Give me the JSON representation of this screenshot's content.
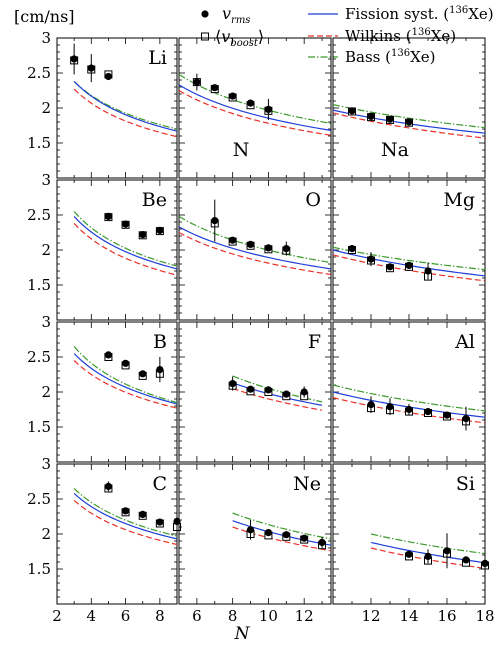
{
  "chart_data": {
    "type": "scatter",
    "unit_label": "[cm/ns]",
    "xlabel": "N",
    "y_ticks": [
      "1.5",
      "2",
      "2.5",
      "3"
    ],
    "x_ticks_col1": [
      "2",
      "4",
      "6",
      "8"
    ],
    "x_ticks_col2": [
      "6",
      "8",
      "10",
      "12"
    ],
    "x_ticks_col3": [
      "12",
      "14",
      "16",
      "18"
    ],
    "ylim": [
      1.0,
      3.0
    ],
    "xlim_col1": [
      2,
      9
    ],
    "xlim_col2": [
      5,
      13.5
    ],
    "xlim_col3": [
      10,
      18
    ],
    "legend": {
      "rms": {
        "sym": "v",
        "sub": "rms"
      },
      "boost": {
        "open": "⟨",
        "sym": "v",
        "sub": "boost",
        "close": "⟩"
      },
      "fission": {
        "text_before": "Fission syst. (",
        "sup": "136",
        "text_after": "Xe)",
        "color": "#1f3fd8"
      },
      "wilkins": {
        "text_before": "Wilkins (",
        "sup": "136",
        "text_after": "Xe)",
        "color": "#e8332b"
      },
      "bass": {
        "text_before": "Bass (",
        "sup": "136",
        "text_after": "Xe)",
        "color": "#3a9a2a"
      }
    },
    "panels": [
      {
        "element": "Li",
        "row": 0,
        "col": 0,
        "label_pos": "top-right",
        "rms": [
          [
            3,
            2.7,
            0.22
          ],
          [
            4,
            2.57,
            0.2
          ],
          [
            5,
            2.45,
            0.0
          ]
        ],
        "boost": [
          [
            3,
            2.68
          ],
          [
            4,
            2.55
          ],
          [
            5,
            2.48
          ]
        ],
        "fission": [
          [
            3,
            2.38
          ],
          [
            9,
            1.67
          ]
        ],
        "wilkins": [
          [
            3,
            2.27
          ],
          [
            9,
            1.59
          ]
        ],
        "bass": [
          [
            3,
            2.38
          ],
          [
            9,
            1.7
          ]
        ]
      },
      {
        "element": "N",
        "row": 0,
        "col": 1,
        "label_pos": "bottom-left",
        "rms": [
          [
            6,
            2.37,
            0.12
          ],
          [
            7,
            2.29,
            0.0
          ],
          [
            8,
            2.17,
            0.0
          ],
          [
            9,
            2.07,
            0.0
          ],
          [
            10,
            1.98,
            0.15
          ]
        ],
        "boost": [
          [
            6,
            2.37
          ],
          [
            7,
            2.27
          ],
          [
            8,
            2.15
          ],
          [
            9,
            2.04
          ],
          [
            10,
            1.96
          ]
        ],
        "fission": [
          [
            5,
            2.33
          ],
          [
            13.5,
            1.68
          ]
        ],
        "wilkins": [
          [
            5,
            2.25
          ],
          [
            13.5,
            1.61
          ]
        ],
        "bass": [
          [
            5,
            2.48
          ],
          [
            13.5,
            1.78
          ]
        ]
      },
      {
        "element": "Na",
        "row": 0,
        "col": 2,
        "label_pos": "bottom-left",
        "rms": [
          [
            11,
            1.96,
            0.0
          ],
          [
            12,
            1.88,
            0.0
          ],
          [
            13,
            1.84,
            0.0
          ],
          [
            14,
            1.8,
            0.0
          ]
        ],
        "boost": [
          [
            11,
            1.95
          ],
          [
            12,
            1.87
          ],
          [
            13,
            1.83
          ],
          [
            14,
            1.79
          ]
        ],
        "fission": [
          [
            10,
            1.97
          ],
          [
            18,
            1.64
          ]
        ],
        "wilkins": [
          [
            10,
            1.93
          ],
          [
            18,
            1.57
          ]
        ],
        "bass": [
          [
            10,
            2.05
          ],
          [
            18,
            1.72
          ]
        ]
      },
      {
        "element": "Be",
        "row": 1,
        "col": 0,
        "label_pos": "top-right",
        "rms": [
          [
            5,
            2.48,
            0.0
          ],
          [
            6,
            2.37,
            0.0
          ],
          [
            7,
            2.22,
            0.0
          ],
          [
            8,
            2.28,
            0.0
          ]
        ],
        "boost": [
          [
            5,
            2.47
          ],
          [
            6,
            2.36
          ],
          [
            7,
            2.21
          ],
          [
            8,
            2.27
          ]
        ],
        "fission": [
          [
            3,
            2.48
          ],
          [
            9,
            1.73
          ]
        ],
        "wilkins": [
          [
            3,
            2.38
          ],
          [
            9,
            1.64
          ]
        ],
        "bass": [
          [
            3,
            2.55
          ],
          [
            9,
            1.77
          ]
        ]
      },
      {
        "element": "O",
        "row": 1,
        "col": 1,
        "label_pos": "top-right",
        "rms": [
          [
            7,
            2.42,
            0.3
          ],
          [
            8,
            2.14,
            0.0
          ],
          [
            9,
            2.08,
            0.0
          ],
          [
            10,
            2.03,
            0.0
          ],
          [
            11,
            2.02,
            0.1
          ]
        ],
        "boost": [
          [
            7,
            2.38
          ],
          [
            8,
            2.12
          ],
          [
            9,
            2.06
          ],
          [
            10,
            2.01
          ],
          [
            11,
            1.99
          ]
        ],
        "fission": [
          [
            5,
            2.33
          ],
          [
            13.5,
            1.73
          ]
        ],
        "wilkins": [
          [
            5,
            2.25
          ],
          [
            13.5,
            1.65
          ]
        ],
        "bass": [
          [
            5,
            2.48
          ],
          [
            13.5,
            1.82
          ]
        ]
      },
      {
        "element": "Mg",
        "row": 1,
        "col": 2,
        "label_pos": "top-right",
        "rms": [
          [
            11,
            2.02,
            0.0
          ],
          [
            12,
            1.87,
            0.1
          ],
          [
            13,
            1.76,
            0.0
          ],
          [
            14,
            1.78,
            0.0
          ],
          [
            15,
            1.7,
            0.12
          ]
        ],
        "boost": [
          [
            11,
            2.0
          ],
          [
            12,
            1.85
          ],
          [
            13,
            1.74
          ],
          [
            14,
            1.76
          ],
          [
            15,
            1.62
          ]
        ],
        "fission": [
          [
            10,
            2.0
          ],
          [
            18,
            1.63
          ]
        ],
        "wilkins": [
          [
            10,
            1.93
          ],
          [
            18,
            1.56
          ]
        ],
        "bass": [
          [
            10,
            2.04
          ],
          [
            18,
            1.72
          ]
        ]
      },
      {
        "element": "B",
        "row": 2,
        "col": 0,
        "label_pos": "top-right",
        "rms": [
          [
            5,
            2.53,
            0.0
          ],
          [
            6,
            2.41,
            0.0
          ],
          [
            7,
            2.26,
            0.0
          ],
          [
            8,
            2.32,
            0.18
          ]
        ],
        "boost": [
          [
            5,
            2.5
          ],
          [
            6,
            2.38
          ],
          [
            7,
            2.23
          ],
          [
            8,
            2.26
          ]
        ],
        "fission": [
          [
            3,
            2.55
          ],
          [
            9,
            1.83
          ]
        ],
        "wilkins": [
          [
            3,
            2.45
          ],
          [
            9,
            1.77
          ]
        ],
        "bass": [
          [
            3,
            2.65
          ],
          [
            9,
            1.85
          ]
        ]
      },
      {
        "element": "F",
        "row": 2,
        "col": 1,
        "label_pos": "top-right",
        "rms": [
          [
            8,
            2.12,
            0.1
          ],
          [
            9,
            2.04,
            0.0
          ],
          [
            10,
            2.03,
            0.0
          ],
          [
            11,
            1.97,
            0.0
          ],
          [
            12,
            2.0,
            0.08
          ]
        ],
        "boost": [
          [
            8,
            2.09
          ],
          [
            9,
            2.01
          ],
          [
            10,
            2.0
          ],
          [
            11,
            1.94
          ],
          [
            12,
            1.94
          ]
        ],
        "fission": [
          [
            8,
            2.13
          ],
          [
            13,
            1.81
          ]
        ],
        "wilkins": [
          [
            8,
            2.05
          ],
          [
            13,
            1.74
          ]
        ],
        "bass": [
          [
            8,
            2.23
          ],
          [
            13,
            1.86
          ]
        ]
      },
      {
        "element": "Al",
        "row": 2,
        "col": 2,
        "label_pos": "top-right",
        "rms": [
          [
            12,
            1.82,
            0.12
          ],
          [
            13,
            1.79,
            0.12
          ],
          [
            14,
            1.75,
            0.08
          ],
          [
            15,
            1.72,
            0.0
          ],
          [
            16,
            1.67,
            0.0
          ],
          [
            17,
            1.62,
            0.17
          ]
        ],
        "boost": [
          [
            12,
            1.77
          ],
          [
            13,
            1.74
          ],
          [
            14,
            1.72
          ],
          [
            15,
            1.7
          ],
          [
            16,
            1.65
          ],
          [
            17,
            1.58
          ]
        ],
        "fission": [
          [
            10,
            2.0
          ],
          [
            18,
            1.64
          ]
        ],
        "wilkins": [
          [
            10,
            1.92
          ],
          [
            18,
            1.56
          ]
        ],
        "bass": [
          [
            10,
            2.1
          ],
          [
            18,
            1.73
          ]
        ]
      },
      {
        "element": "C",
        "row": 3,
        "col": 0,
        "label_pos": "top-right",
        "rms": [
          [
            5,
            2.68,
            0.07
          ],
          [
            6,
            2.33,
            0.0
          ],
          [
            7,
            2.28,
            0.0
          ],
          [
            8,
            2.17,
            0.0
          ],
          [
            9,
            2.18,
            0.15
          ]
        ],
        "boost": [
          [
            5,
            2.65
          ],
          [
            6,
            2.31
          ],
          [
            7,
            2.26
          ],
          [
            8,
            2.15
          ],
          [
            9,
            2.1
          ]
        ],
        "fission": [
          [
            3,
            2.58
          ],
          [
            9,
            1.93
          ]
        ],
        "wilkins": [
          [
            3,
            2.48
          ],
          [
            9,
            1.85
          ]
        ],
        "bass": [
          [
            3,
            2.65
          ],
          [
            9,
            1.97
          ]
        ]
      },
      {
        "element": "Ne",
        "row": 3,
        "col": 1,
        "label_pos": "top-right",
        "rms": [
          [
            9,
            2.06,
            0.14
          ],
          [
            10,
            2.02,
            0.0
          ],
          [
            11,
            1.99,
            0.0
          ],
          [
            12,
            1.94,
            0.0
          ],
          [
            13,
            1.88,
            0.08
          ]
        ],
        "boost": [
          [
            9,
            2.0
          ],
          [
            10,
            1.98
          ],
          [
            11,
            1.96
          ],
          [
            12,
            1.92
          ],
          [
            13,
            1.84
          ]
        ],
        "fission": [
          [
            8,
            2.19
          ],
          [
            13.5,
            1.84
          ]
        ],
        "wilkins": [
          [
            8,
            2.1
          ],
          [
            13.5,
            1.76
          ]
        ],
        "bass": [
          [
            8,
            2.3
          ],
          [
            13.5,
            1.93
          ]
        ]
      },
      {
        "element": "Si",
        "row": 3,
        "col": 2,
        "label_pos": "top-right",
        "rms": [
          [
            14,
            1.71,
            0.0
          ],
          [
            15,
            1.68,
            0.1
          ],
          [
            16,
            1.76,
            0.25
          ],
          [
            17,
            1.63,
            0.0
          ],
          [
            18,
            1.58,
            0.28
          ]
        ],
        "boost": [
          [
            14,
            1.68
          ],
          [
            15,
            1.62
          ],
          [
            16,
            1.72
          ],
          [
            17,
            1.59
          ],
          [
            18,
            1.55
          ]
        ],
        "fission": [
          [
            12,
            1.88
          ],
          [
            18,
            1.59
          ]
        ],
        "wilkins": [
          [
            12,
            1.8
          ],
          [
            18,
            1.51
          ]
        ],
        "bass": [
          [
            12,
            2.0
          ],
          [
            18,
            1.72
          ]
        ]
      }
    ]
  }
}
